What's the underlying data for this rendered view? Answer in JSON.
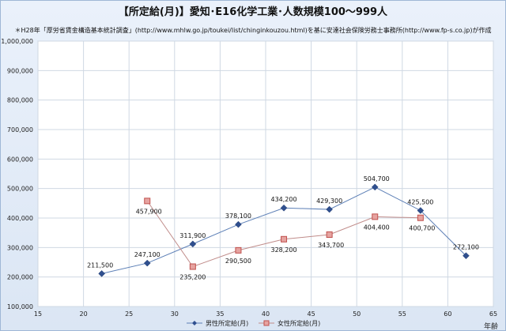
{
  "chart_data": {
    "type": "line",
    "title": "【所定給(月)】愛知･E16化学工業･人数規模100～999人",
    "subtitle": "＊H28年「厚労省賃金構造基本統計調査」(http://www.mhlw.go.jp/toukei/list/chinginkouzou.html)を基に安達社会保険労務士事務所(http://www.fp-s.co.jp)が作成",
    "xlabel": "年齢",
    "ylabel": "",
    "xlim": [
      15,
      65
    ],
    "ylim": [
      100000,
      1000000
    ],
    "x_ticks": [
      "15",
      "20",
      "25",
      "30",
      "35",
      "40",
      "45",
      "50",
      "55",
      "60",
      "65"
    ],
    "y_ticks": [
      "100,000",
      "200,000",
      "300,000",
      "400,000",
      "500,000",
      "600,000",
      "700,000",
      "800,000",
      "900,000",
      "1,000,000"
    ],
    "grid": true,
    "legend_position": "bottom",
    "series": [
      {
        "name": "男性所定給(月)",
        "color": "#2f4f8f",
        "marker": "diamond",
        "points": [
          {
            "x": 22,
            "y": 211500,
            "label": "211,500"
          },
          {
            "x": 27,
            "y": 247100,
            "label": "247,100"
          },
          {
            "x": 32,
            "y": 311900,
            "label": "311,900"
          },
          {
            "x": 37,
            "y": 378100,
            "label": "378,100"
          },
          {
            "x": 42,
            "y": 434200,
            "label": "434,200"
          },
          {
            "x": 47,
            "y": 429300,
            "label": "429,300"
          },
          {
            "x": 52,
            "y": 504700,
            "label": "504,700"
          },
          {
            "x": 57,
            "y": 425500,
            "label": "425,500"
          },
          {
            "x": 62,
            "y": 272100,
            "label": "272,100"
          }
        ]
      },
      {
        "name": "女性所定給(月)",
        "color": "#c0504d",
        "marker": "square",
        "points": [
          {
            "x": 27,
            "y": 457900,
            "label": "457,900"
          },
          {
            "x": 32,
            "y": 235200,
            "label": "235,200"
          },
          {
            "x": 37,
            "y": 290500,
            "label": "290,500"
          },
          {
            "x": 42,
            "y": 328200,
            "label": "328,200"
          },
          {
            "x": 47,
            "y": 343700,
            "label": "343,700"
          },
          {
            "x": 52,
            "y": 404400,
            "label": "404,400"
          },
          {
            "x": 57,
            "y": 400700,
            "label": "400,700"
          }
        ]
      }
    ]
  }
}
